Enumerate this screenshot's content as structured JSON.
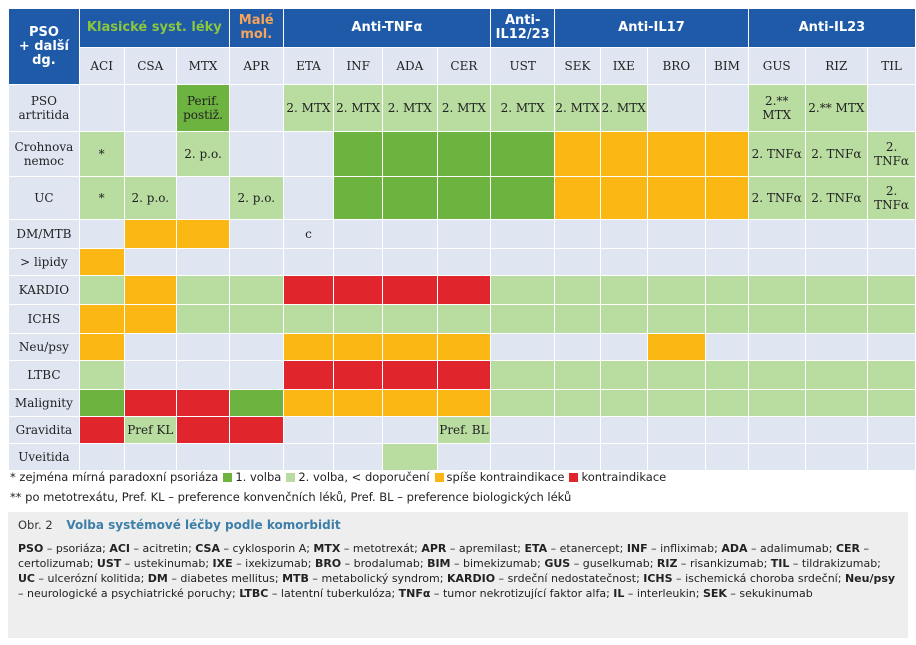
{
  "colors": {
    "header_blue": "#1e5aa8",
    "light_blue": "#dfe6f1",
    "dark_green": "#6cb33f",
    "light_green": "#b9dca0",
    "yellow": "#fbb713",
    "red": "#e0262c"
  },
  "header": {
    "corner": [
      "PSO",
      "+ další",
      "dg."
    ],
    "groups": [
      {
        "label": "Klasické syst. léky",
        "style": "classic",
        "span": 3
      },
      {
        "label": "Malé mol.",
        "style": "small",
        "span": 1
      },
      {
        "label": "Anti-TNFα",
        "style": "plain",
        "span": 4
      },
      {
        "label": "Anti-IL12/23",
        "style": "plain",
        "span": 1
      },
      {
        "label": "Anti-IL17",
        "style": "plain",
        "span": 4
      },
      {
        "label": "Anti-IL23",
        "style": "plain",
        "span": 3
      }
    ],
    "drugs": [
      "ACI",
      "CSA",
      "MTX",
      "APR",
      "ETA",
      "INF",
      "ADA",
      "CER",
      "UST",
      "SEK",
      "IXE",
      "BRO",
      "BIM",
      "GUS",
      "RIZ",
      "TIL"
    ]
  },
  "rows": [
    {
      "label": "PSO artritida",
      "cells": [
        [
          "b",
          ""
        ],
        [
          "b",
          ""
        ],
        [
          "g",
          "Perif. postiž."
        ],
        [
          "b",
          ""
        ],
        [
          "l",
          "2. MTX"
        ],
        [
          "l",
          "2. MTX"
        ],
        [
          "l",
          "2. MTX"
        ],
        [
          "l",
          "2. MTX"
        ],
        [
          "l",
          "2. MTX"
        ],
        [
          "l",
          "2. MTX"
        ],
        [
          "l",
          "2. MTX"
        ],
        [
          "b",
          ""
        ],
        [
          "b",
          ""
        ],
        [
          "l",
          "2.** MTX"
        ],
        [
          "l",
          "2.** MTX"
        ],
        [
          "b",
          ""
        ]
      ]
    },
    {
      "label": "Crohnova nemoc",
      "cells": [
        [
          "l",
          "*"
        ],
        [
          "b",
          ""
        ],
        [
          "l",
          "2. p.o."
        ],
        [
          "b",
          ""
        ],
        [
          "b",
          ""
        ],
        [
          "g",
          ""
        ],
        [
          "g",
          ""
        ],
        [
          "g",
          ""
        ],
        [
          "g",
          ""
        ],
        [
          "y",
          ""
        ],
        [
          "y",
          ""
        ],
        [
          "y",
          ""
        ],
        [
          "y",
          ""
        ],
        [
          "l",
          "2. TNFα"
        ],
        [
          "l",
          "2. TNFα"
        ],
        [
          "l",
          "2. TNFα"
        ]
      ]
    },
    {
      "label": "UC",
      "cells": [
        [
          "l",
          "*"
        ],
        [
          "l",
          "2. p.o."
        ],
        [
          "b",
          ""
        ],
        [
          "l",
          "2. p.o."
        ],
        [
          "b",
          ""
        ],
        [
          "g",
          ""
        ],
        [
          "g",
          ""
        ],
        [
          "g",
          ""
        ],
        [
          "g",
          ""
        ],
        [
          "y",
          ""
        ],
        [
          "y",
          ""
        ],
        [
          "y",
          ""
        ],
        [
          "y",
          ""
        ],
        [
          "l",
          "2. TNFα"
        ],
        [
          "l",
          "2. TNFα"
        ],
        [
          "l",
          "2. TNFα"
        ]
      ]
    },
    {
      "label": "DM/MTB",
      "cells": [
        [
          "b",
          ""
        ],
        [
          "y",
          ""
        ],
        [
          "y",
          ""
        ],
        [
          "b",
          ""
        ],
        [
          "b",
          "c"
        ],
        [
          "b",
          ""
        ],
        [
          "b",
          ""
        ],
        [
          "b",
          ""
        ],
        [
          "b",
          ""
        ],
        [
          "b",
          ""
        ],
        [
          "b",
          ""
        ],
        [
          "b",
          ""
        ],
        [
          "b",
          ""
        ],
        [
          "b",
          ""
        ],
        [
          "b",
          ""
        ],
        [
          "b",
          ""
        ]
      ]
    },
    {
      "label": "> lipidy",
      "cells": [
        [
          "y",
          ""
        ],
        [
          "b",
          ""
        ],
        [
          "b",
          ""
        ],
        [
          "b",
          ""
        ],
        [
          "b",
          ""
        ],
        [
          "b",
          ""
        ],
        [
          "b",
          ""
        ],
        [
          "b",
          ""
        ],
        [
          "b",
          ""
        ],
        [
          "b",
          ""
        ],
        [
          "b",
          ""
        ],
        [
          "b",
          ""
        ],
        [
          "b",
          ""
        ],
        [
          "b",
          ""
        ],
        [
          "b",
          ""
        ],
        [
          "b",
          ""
        ]
      ]
    },
    {
      "label": "KARDIO",
      "cells": [
        [
          "l",
          ""
        ],
        [
          "y",
          ""
        ],
        [
          "l",
          ""
        ],
        [
          "l",
          ""
        ],
        [
          "r",
          ""
        ],
        [
          "r",
          ""
        ],
        [
          "r",
          ""
        ],
        [
          "r",
          ""
        ],
        [
          "l",
          ""
        ],
        [
          "l",
          ""
        ],
        [
          "l",
          ""
        ],
        [
          "l",
          ""
        ],
        [
          "l",
          ""
        ],
        [
          "l",
          ""
        ],
        [
          "l",
          ""
        ],
        [
          "l",
          ""
        ]
      ]
    },
    {
      "label": "ICHS",
      "cells": [
        [
          "y",
          ""
        ],
        [
          "y",
          ""
        ],
        [
          "l",
          ""
        ],
        [
          "l",
          ""
        ],
        [
          "l",
          ""
        ],
        [
          "l",
          ""
        ],
        [
          "l",
          ""
        ],
        [
          "l",
          ""
        ],
        [
          "l",
          ""
        ],
        [
          "l",
          ""
        ],
        [
          "l",
          ""
        ],
        [
          "l",
          ""
        ],
        [
          "l",
          ""
        ],
        [
          "l",
          ""
        ],
        [
          "l",
          ""
        ],
        [
          "l",
          ""
        ]
      ]
    },
    {
      "label": "Neu/psy",
      "cells": [
        [
          "y",
          ""
        ],
        [
          "b",
          ""
        ],
        [
          "b",
          ""
        ],
        [
          "b",
          ""
        ],
        [
          "y",
          ""
        ],
        [
          "y",
          ""
        ],
        [
          "y",
          ""
        ],
        [
          "y",
          ""
        ],
        [
          "b",
          ""
        ],
        [
          "b",
          ""
        ],
        [
          "b",
          ""
        ],
        [
          "y",
          ""
        ],
        [
          "b",
          ""
        ],
        [
          "b",
          ""
        ],
        [
          "b",
          ""
        ],
        [
          "b",
          ""
        ]
      ]
    },
    {
      "label": "LTBC",
      "cells": [
        [
          "l",
          ""
        ],
        [
          "b",
          ""
        ],
        [
          "b",
          ""
        ],
        [
          "b",
          ""
        ],
        [
          "r",
          ""
        ],
        [
          "r",
          ""
        ],
        [
          "r",
          ""
        ],
        [
          "r",
          ""
        ],
        [
          "l",
          ""
        ],
        [
          "l",
          ""
        ],
        [
          "l",
          ""
        ],
        [
          "l",
          ""
        ],
        [
          "l",
          ""
        ],
        [
          "l",
          ""
        ],
        [
          "l",
          ""
        ],
        [
          "l",
          ""
        ]
      ]
    },
    {
      "label": "Malignity",
      "cells": [
        [
          "g",
          ""
        ],
        [
          "r",
          ""
        ],
        [
          "r",
          ""
        ],
        [
          "g",
          ""
        ],
        [
          "y",
          ""
        ],
        [
          "y",
          ""
        ],
        [
          "y",
          ""
        ],
        [
          "y",
          ""
        ],
        [
          "l",
          ""
        ],
        [
          "l",
          ""
        ],
        [
          "l",
          ""
        ],
        [
          "l",
          ""
        ],
        [
          "l",
          ""
        ],
        [
          "l",
          ""
        ],
        [
          "l",
          ""
        ],
        [
          "l",
          ""
        ]
      ]
    },
    {
      "label": "Gravidita",
      "cells": [
        [
          "r",
          ""
        ],
        [
          "l",
          "Pref KL"
        ],
        [
          "r",
          ""
        ],
        [
          "r",
          ""
        ],
        [
          "b",
          ""
        ],
        [
          "b",
          ""
        ],
        [
          "b",
          ""
        ],
        [
          "l",
          "Pref. BL"
        ],
        [
          "b",
          ""
        ],
        [
          "b",
          ""
        ],
        [
          "b",
          ""
        ],
        [
          "b",
          ""
        ],
        [
          "b",
          ""
        ],
        [
          "b",
          ""
        ],
        [
          "b",
          ""
        ],
        [
          "b",
          ""
        ]
      ]
    },
    {
      "label": "Uveitida",
      "cells": [
        [
          "b",
          ""
        ],
        [
          "b",
          ""
        ],
        [
          "b",
          ""
        ],
        [
          "b",
          ""
        ],
        [
          "b",
          ""
        ],
        [
          "b",
          ""
        ],
        [
          "l",
          ""
        ],
        [
          "b",
          ""
        ],
        [
          "b",
          ""
        ],
        [
          "b",
          ""
        ],
        [
          "b",
          ""
        ],
        [
          "b",
          ""
        ],
        [
          "b",
          ""
        ],
        [
          "b",
          ""
        ],
        [
          "b",
          ""
        ],
        [
          "b",
          ""
        ]
      ]
    }
  ],
  "legend": {
    "line1_prefix": "* zejména mírná paradoxní psoriáza",
    "item_dark_green": "1. volba",
    "item_light_green": "2. volba, < doporučení",
    "item_yellow": "spíše kontraindikace",
    "item_red": "kontraindikace",
    "line2": "** po metotrexátu, Pref. KL – preference konvenčních léků, Pref. BL – preference biologických léků"
  },
  "caption": {
    "figure_number": "Obr. 2",
    "figure_title": "Volba systémové léčby podle komorbidit",
    "abbreviations": [
      [
        "PSO",
        "psoriáza"
      ],
      [
        "ACI",
        "acitretin"
      ],
      [
        "CSA",
        "cyklosporin A"
      ],
      [
        "MTX",
        "metotrexát"
      ],
      [
        "APR",
        "apremilast"
      ],
      [
        "ETA",
        "etanercept"
      ],
      [
        "INF",
        "infliximab"
      ],
      [
        "ADA",
        "adalimumab"
      ],
      [
        "CER",
        "certolizumab"
      ],
      [
        "UST",
        "ustekinumab"
      ],
      [
        "IXE",
        "ixekizumab"
      ],
      [
        "BRO",
        "brodalumab"
      ],
      [
        "BIM",
        "bimekizumab"
      ],
      [
        "GUS",
        "guselkumab"
      ],
      [
        "RIZ",
        "risankizumab"
      ],
      [
        "TIL",
        "tildrakizumab"
      ],
      [
        "UC",
        "ulcerózní kolitida"
      ],
      [
        "DM",
        "diabetes mellitus"
      ],
      [
        "MTB",
        "metabolický syndrom"
      ],
      [
        "KARDIO",
        "srdeční nedostatečnost"
      ],
      [
        "ICHS",
        "ischemická choroba srdeční"
      ],
      [
        "Neu/psy",
        "neurologické a psychiatrické poruchy"
      ],
      [
        "LTBC",
        "latentní tuberkulóza"
      ],
      [
        "TNFα",
        "tumor nekrotizující faktor alfa"
      ],
      [
        "IL",
        "interleukin"
      ],
      [
        "SEK",
        "sekukinumab"
      ]
    ]
  }
}
